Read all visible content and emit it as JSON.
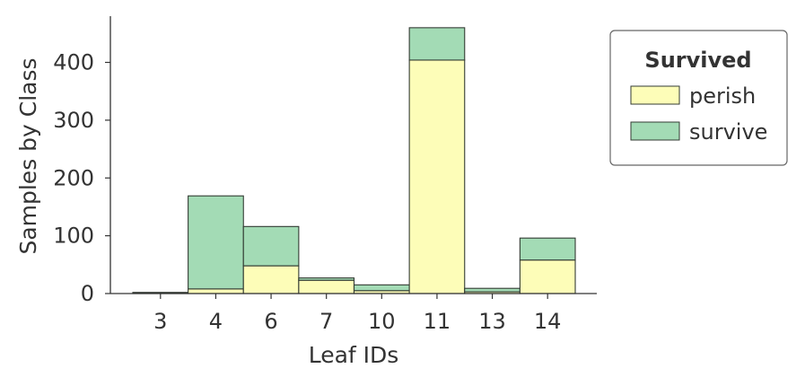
{
  "chart_data": {
    "type": "bar",
    "stacked": true,
    "xlabel": "Leaf IDs",
    "ylabel": "Samples by Class",
    "categories": [
      "3",
      "4",
      "6",
      "7",
      "10",
      "11",
      "13",
      "14"
    ],
    "series": [
      {
        "name": "perish",
        "values": [
          1,
          8,
          48,
          23,
          5,
          404,
          3,
          58
        ]
      },
      {
        "name": "survive",
        "values": [
          1,
          161,
          68,
          4,
          10,
          56,
          6,
          38
        ]
      }
    ],
    "ylim": [
      0,
      480
    ],
    "yticks": [
      0,
      100,
      200,
      300,
      400
    ],
    "legend": {
      "title": "Survived",
      "placement": "right-outside",
      "entries": [
        "perish",
        "survive"
      ]
    },
    "colors": {
      "perish": "#fdfdb8",
      "survive": "#a3dbb5",
      "edge": "#333b33",
      "axis": "#333333"
    },
    "grid": false
  }
}
